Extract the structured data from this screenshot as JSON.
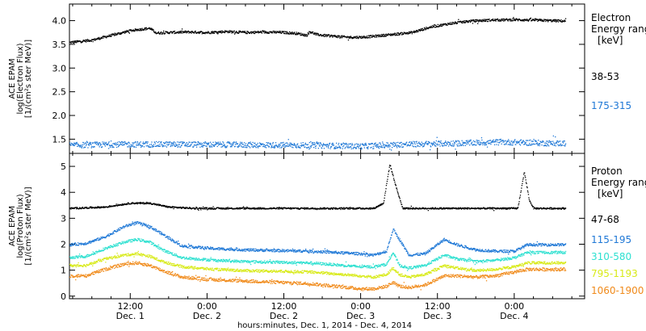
{
  "colors": {
    "black": "#000000",
    "blue": "#1f78d6",
    "cyan": "#2de0d0",
    "yellow": "#d8ea18",
    "orange": "#f08a1a"
  },
  "figure": {
    "xlabel": "hours:minutes, Dec.  1, 2014 - Dec.  4, 2014",
    "x_ticks": [
      {
        "time": "12:00",
        "date": "Dec. 1",
        "hour": 12
      },
      {
        "time": "0:00",
        "date": "Dec. 2",
        "hour": 24
      },
      {
        "time": "12:00",
        "date": "Dec. 2",
        "hour": 36
      },
      {
        "time": "0:00",
        "date": "Dec. 3",
        "hour": 48
      },
      {
        "time": "12:00",
        "date": "Dec. 3",
        "hour": 60
      },
      {
        "time": "0:00",
        "date": "Dec. 4",
        "hour": 72
      }
    ],
    "xlim_hours": [
      2.5,
      83
    ]
  },
  "chart_data": [
    {
      "type": "scatter",
      "ylabel_lines": [
        "ACE EPAM",
        "log(Electron Flux)",
        "[1/(cm²s ster MeV)]"
      ],
      "legend_title_lines": [
        "Electron",
        "Energy ranges",
        "[keV]"
      ],
      "ylim": [
        1.2,
        4.35
      ],
      "yticks": [
        1.5,
        2.0,
        2.5,
        3.0,
        3.5,
        4.0
      ],
      "ytick_labels": [
        "1.5",
        "2.0",
        "2.5",
        "3.0",
        "3.5",
        "4.0"
      ],
      "series": [
        {
          "name": "38-53",
          "color_key": "black",
          "noise": 0.025,
          "x": [
            2.5,
            6,
            9,
            12,
            15,
            16,
            18,
            21,
            24,
            27,
            30,
            33,
            36,
            38,
            39.5,
            40,
            41,
            42,
            44,
            46,
            48,
            50,
            53,
            56,
            59,
            62,
            65,
            68,
            72,
            75,
            78,
            80
          ],
          "y": [
            3.55,
            3.6,
            3.7,
            3.8,
            3.85,
            3.75,
            3.76,
            3.77,
            3.76,
            3.78,
            3.76,
            3.77,
            3.76,
            3.74,
            3.7,
            3.78,
            3.72,
            3.7,
            3.68,
            3.66,
            3.66,
            3.68,
            3.72,
            3.76,
            3.88,
            3.95,
            4.0,
            4.02,
            4.03,
            4.02,
            4.01,
            4.0
          ]
        },
        {
          "name": "175-315",
          "color_key": "blue",
          "noise": 0.06,
          "x": [
            2.5,
            10,
            20,
            30,
            40,
            48,
            55,
            62,
            70,
            76,
            80
          ],
          "y": [
            1.38,
            1.4,
            1.4,
            1.39,
            1.38,
            1.36,
            1.4,
            1.42,
            1.45,
            1.43,
            1.42
          ]
        }
      ]
    },
    {
      "type": "scatter",
      "ylabel_lines": [
        "ACE EPAM",
        "log(Proton Flux)",
        "[1/(cm²s ster MeV)]"
      ],
      "legend_title_lines": [
        "Proton",
        "Energy ranges",
        "[keV]"
      ],
      "ylim": [
        -0.1,
        5.5
      ],
      "yticks": [
        0,
        1,
        2,
        3,
        4,
        5
      ],
      "ytick_labels": [
        "0",
        "1",
        "2",
        "3",
        "4",
        "5"
      ],
      "series": [
        {
          "name": "47-68",
          "color_key": "black",
          "noise": 0.03,
          "x": [
            2.5,
            8,
            12,
            15,
            18,
            22,
            30,
            40,
            47,
            50,
            51.5,
            52.5,
            53.5,
            54.5,
            56,
            62,
            70,
            72.5,
            73.5,
            74.3,
            75,
            80
          ],
          "y": [
            3.4,
            3.45,
            3.6,
            3.6,
            3.45,
            3.4,
            3.4,
            3.4,
            3.4,
            3.4,
            3.6,
            5.1,
            4.2,
            3.4,
            3.4,
            3.4,
            3.4,
            3.4,
            4.8,
            3.7,
            3.4,
            3.4
          ]
        },
        {
          "name": "115-195",
          "color_key": "blue",
          "noise": 0.05,
          "x": [
            2.5,
            5,
            8,
            11,
            13,
            15,
            17,
            20,
            25,
            30,
            40,
            48,
            50,
            52,
            53,
            54,
            55.5,
            58,
            61,
            63,
            66,
            69,
            72,
            74,
            77,
            80
          ],
          "y": [
            2.0,
            2.05,
            2.3,
            2.7,
            2.85,
            2.7,
            2.4,
            1.95,
            1.85,
            1.8,
            1.75,
            1.65,
            1.6,
            1.75,
            2.6,
            2.2,
            1.6,
            1.65,
            2.2,
            2.0,
            1.8,
            1.75,
            1.75,
            2.0,
            2.0,
            2.0
          ]
        },
        {
          "name": "310-580",
          "color_key": "cyan",
          "noise": 0.05,
          "x": [
            2.5,
            5,
            8,
            11,
            13,
            15,
            17,
            20,
            25,
            30,
            40,
            48,
            50,
            52,
            53,
            54,
            55.5,
            58,
            61,
            63,
            66,
            69,
            72,
            74,
            77,
            80
          ],
          "y": [
            1.5,
            1.55,
            1.85,
            2.1,
            2.2,
            2.1,
            1.8,
            1.5,
            1.4,
            1.35,
            1.3,
            1.15,
            1.15,
            1.25,
            1.7,
            1.2,
            1.1,
            1.2,
            1.6,
            1.45,
            1.35,
            1.4,
            1.5,
            1.7,
            1.7,
            1.7
          ]
        },
        {
          "name": "795-1193",
          "color_key": "yellow",
          "noise": 0.05,
          "x": [
            2.5,
            5,
            8,
            11,
            13,
            15,
            17,
            20,
            25,
            30,
            40,
            48,
            50,
            52,
            53,
            54,
            55.5,
            58,
            61,
            63,
            66,
            69,
            72,
            74,
            77,
            80
          ],
          "y": [
            1.2,
            1.2,
            1.45,
            1.6,
            1.65,
            1.55,
            1.35,
            1.15,
            1.05,
            1.0,
            0.95,
            0.8,
            0.75,
            0.85,
            1.1,
            0.85,
            0.75,
            0.85,
            1.2,
            1.1,
            1.0,
            1.05,
            1.15,
            1.3,
            1.3,
            1.3
          ]
        },
        {
          "name": "1060-1900",
          "color_key": "orange",
          "noise": 0.06,
          "x": [
            2.5,
            5,
            8,
            11,
            13,
            15,
            17,
            20,
            25,
            30,
            40,
            48,
            50,
            52,
            53,
            54,
            55.5,
            58,
            61,
            63,
            66,
            69,
            72,
            74,
            77,
            80
          ],
          "y": [
            0.8,
            0.8,
            1.05,
            1.25,
            1.3,
            1.2,
            1.0,
            0.75,
            0.65,
            0.6,
            0.5,
            0.3,
            0.3,
            0.4,
            0.55,
            0.4,
            0.35,
            0.45,
            0.8,
            0.8,
            0.75,
            0.8,
            0.95,
            1.05,
            1.05,
            1.05
          ]
        }
      ]
    }
  ]
}
